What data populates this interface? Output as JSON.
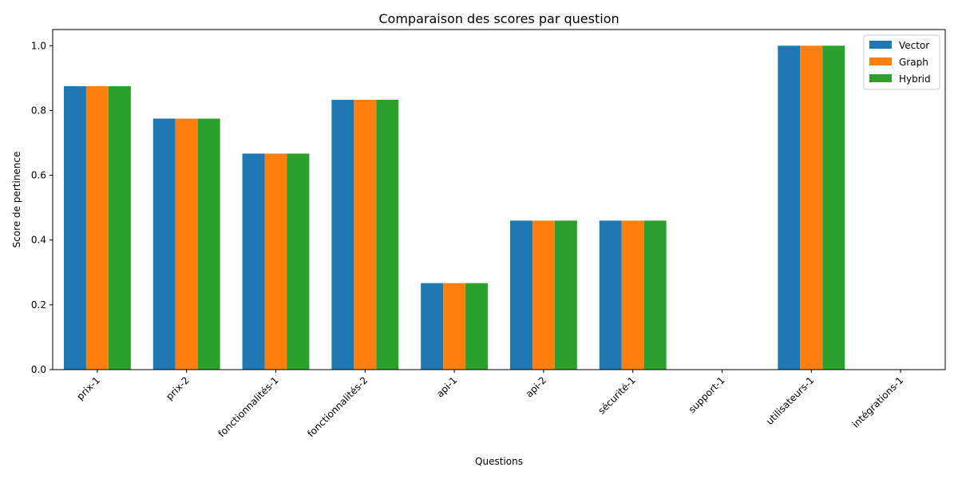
{
  "chart_data": {
    "type": "bar",
    "title": "Comparaison des scores par question",
    "xlabel": "Questions",
    "ylabel": "Score de pertinence",
    "categories": [
      "prix-1",
      "prix-2",
      "fonctionnalités-1",
      "fonctionnalités-2",
      "api-1",
      "api-2",
      "sécurité-1",
      "support-1",
      "utilisateurs-1",
      "intégrations-1"
    ],
    "series": [
      {
        "name": "Vector",
        "color": "#1f77b4",
        "values": [
          0.875,
          0.775,
          0.667,
          0.833,
          0.267,
          0.46,
          0.46,
          0.0,
          1.0,
          0.0
        ]
      },
      {
        "name": "Graph",
        "color": "#ff7f0e",
        "values": [
          0.875,
          0.775,
          0.667,
          0.833,
          0.267,
          0.46,
          0.46,
          0.0,
          1.0,
          0.0
        ]
      },
      {
        "name": "Hybrid",
        "color": "#2ca02c",
        "values": [
          0.875,
          0.775,
          0.667,
          0.833,
          0.267,
          0.46,
          0.46,
          0.0,
          1.0,
          0.0
        ]
      }
    ],
    "ylim": [
      0,
      1.05
    ],
    "yticks": [
      "0.0",
      "0.2",
      "0.4",
      "0.6",
      "0.8",
      "1.0"
    ],
    "grid": false,
    "legend_position": "top-right"
  }
}
